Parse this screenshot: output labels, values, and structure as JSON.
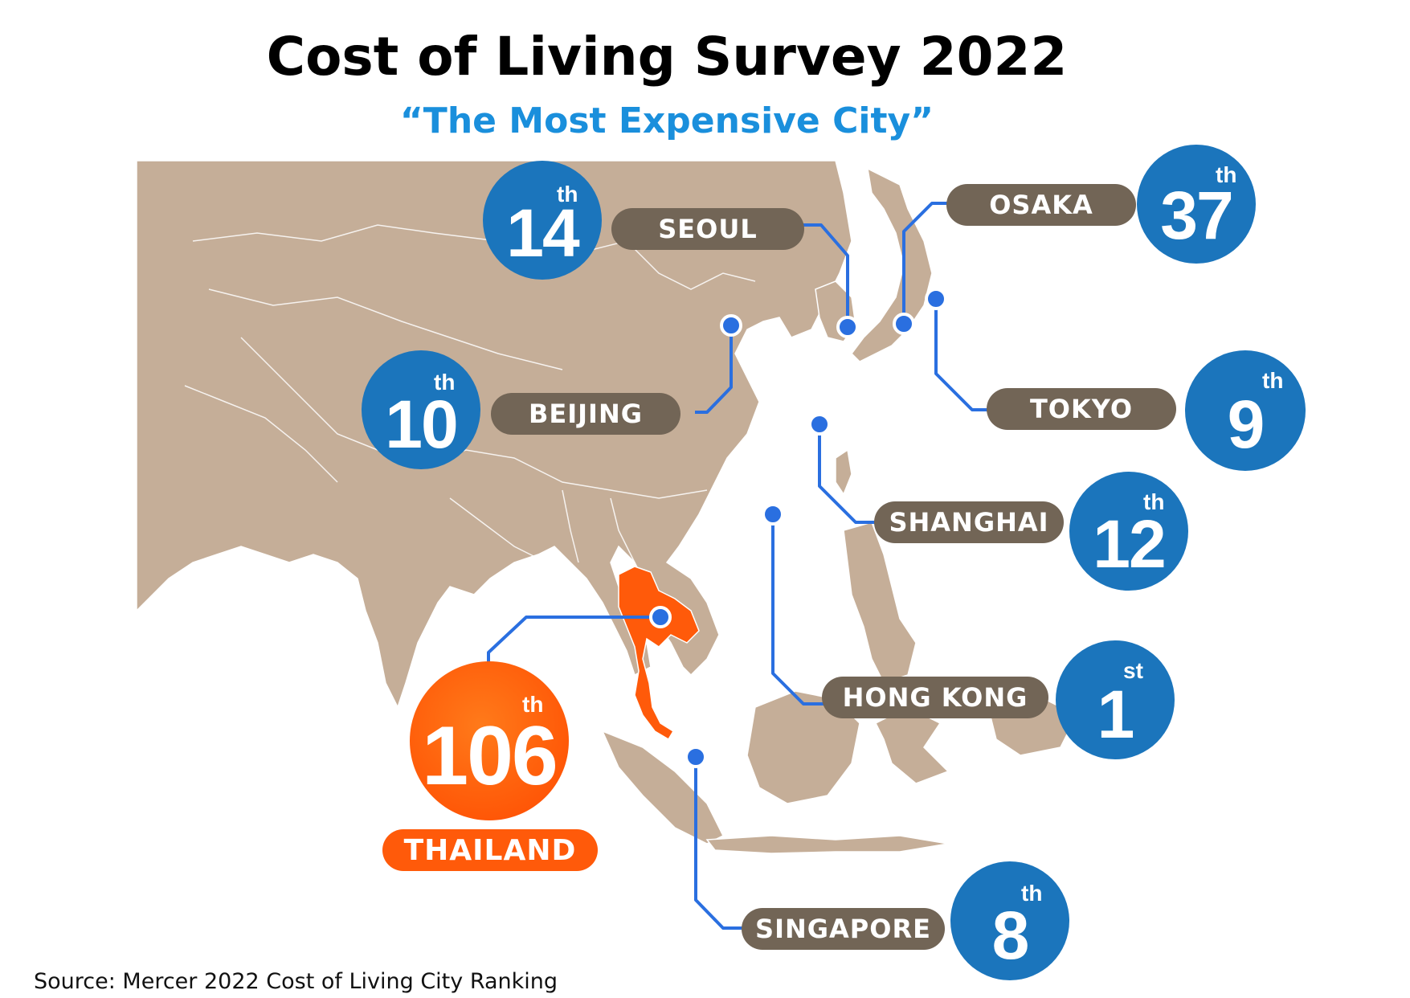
{
  "title": "Cost of Living Survey 2022",
  "subtitle": "“The Most Expensive City”",
  "colors": {
    "land": "#c5ae98",
    "border": "#ffffff",
    "thailand": "#ff5a0a",
    "pill": "#726556",
    "rank_circle": "#1b75bc",
    "connector": "#2a6fe0",
    "subtitle": "#1a8fdc"
  },
  "cities": [
    {
      "id": "seoul",
      "name": "SEOUL",
      "rank": "14",
      "suffix": "th"
    },
    {
      "id": "osaka",
      "name": "OSAKA",
      "rank": "37",
      "suffix": "th"
    },
    {
      "id": "beijing",
      "name": "BEIJING",
      "rank": "10",
      "suffix": "th"
    },
    {
      "id": "tokyo",
      "name": "TOKYO",
      "rank": "9",
      "suffix": "th"
    },
    {
      "id": "shanghai",
      "name": "SHANGHAI",
      "rank": "12",
      "suffix": "th"
    },
    {
      "id": "hongkong",
      "name": "HONG KONG",
      "rank": "1",
      "suffix": "st"
    },
    {
      "id": "singapore",
      "name": "SINGAPORE",
      "rank": "8",
      "suffix": "th"
    }
  ],
  "highlight": {
    "name": "THAILAND",
    "rank": "106",
    "suffix": "th"
  },
  "source": "Source: Mercer 2022 Cost of Living City Ranking"
}
